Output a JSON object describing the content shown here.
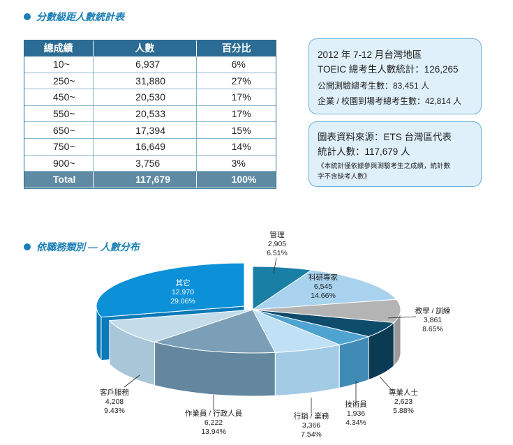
{
  "section1": {
    "title": "分數級距人數統計表"
  },
  "table": {
    "headers": [
      "總成績",
      "人數",
      "百分比"
    ],
    "rows": [
      [
        "10~",
        "6,937",
        "6%"
      ],
      [
        "250~",
        "31,880",
        "27%"
      ],
      [
        "450~",
        "20,530",
        "17%"
      ],
      [
        "550~",
        "20,533",
        "17%"
      ],
      [
        "650~",
        "17,394",
        "15%"
      ],
      [
        "750~",
        "16,649",
        "14%"
      ],
      [
        "900~",
        "3,756",
        "3%"
      ]
    ],
    "total": [
      "Total",
      "117,679",
      "100%"
    ]
  },
  "box1": {
    "line1": "2012 年 7-12 月台灣地區",
    "line2": "TOEIC 總考生人數統計：126,265",
    "line3": "公開測驗總考生數：83,451 人",
    "line4": "企業 / 校園到場考總考生數：42,814 人"
  },
  "box2": {
    "line1": "圖表資料來源：ETS 台灣區代表",
    "line2": "統計人數：117,679 人",
    "note1": "《本統計僅依據參與測驗考生之成績，統計數",
    "note2": "字不含缺考人數》"
  },
  "section2": {
    "title": "依職務類別 — 人數分布"
  },
  "chart_data": {
    "type": "pie",
    "categories": [
      "管理",
      "科研專家",
      "教學 / 訓練",
      "專業人士",
      "技術員",
      "行銷 / 業務",
      "作業員 / 行政人員",
      "客戶服務",
      "其它"
    ],
    "values": [
      2905,
      6545,
      3861,
      2623,
      1936,
      3366,
      6222,
      4208,
      12970
    ],
    "value_labels": [
      "2,905",
      "6,545",
      "3,861",
      "2,623",
      "1,936",
      "3,366",
      "6,222",
      "4,208",
      "12,970"
    ],
    "percent_labels": [
      "6.51%",
      "14.66%",
      "8.65%",
      "5.88%",
      "4.34%",
      "7.54%",
      "13.94%",
      "9.43%",
      "29.06%"
    ],
    "colors": [
      "#1a7fa5",
      "#a8d2ee",
      "#b4b4b4",
      "#0f4c6c",
      "#4fa3d1",
      "#bfe0f5",
      "#7b9fb6",
      "#c4dcea",
      "#0c90d8"
    ],
    "side_colors": [
      "#15688a",
      "#8ab6d4",
      "#999999",
      "#0a3a54",
      "#3f8bb6",
      "#a4cbe6",
      "#62879e",
      "#a9c6d8",
      "#0a7ab8"
    ],
    "style": "3d-exploded"
  }
}
